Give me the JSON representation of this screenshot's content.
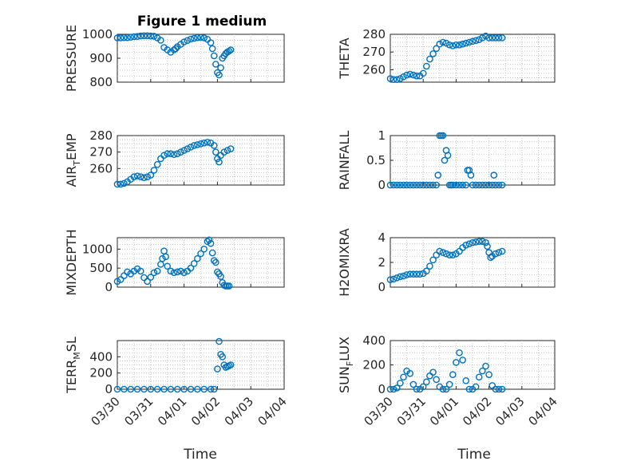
{
  "figure_title": "Figure 1 medium",
  "x_axis": {
    "label": "Time",
    "tick_labels": [
      "03/30",
      "03/31",
      "04/01",
      "04/02",
      "04/03",
      "04/04"
    ],
    "range_days": [
      0,
      5
    ]
  },
  "marker_color": "#0072BD",
  "grid": "on (dotted major and minor)",
  "chart_data": [
    {
      "type": "scatter",
      "ylabel": {
        "main": "PRESSURE",
        "sub": ""
      },
      "ylim": [
        800,
        1000
      ],
      "yticks": [
        800,
        900,
        1000
      ],
      "x_days": [
        0.0,
        0.1,
        0.2,
        0.3,
        0.4,
        0.5,
        0.6,
        0.7,
        0.8,
        0.9,
        1.0,
        1.1,
        1.2,
        1.3,
        1.4,
        1.5,
        1.6,
        1.7,
        1.75,
        1.8,
        1.9,
        2.0,
        2.1,
        2.2,
        2.3,
        2.4,
        2.5,
        2.6,
        2.7,
        2.8,
        2.85,
        2.9,
        2.95,
        3.0,
        3.05,
        3.1,
        3.15,
        3.2,
        3.25,
        3.3,
        3.35,
        3.4
      ],
      "values": [
        985,
        985,
        986,
        986,
        988,
        990,
        991,
        993,
        994,
        994,
        993,
        992,
        985,
        975,
        945,
        935,
        925,
        935,
        940,
        948,
        958,
        968,
        974,
        980,
        983,
        986,
        987,
        985,
        979,
        965,
        940,
        910,
        875,
        840,
        830,
        860,
        900,
        910,
        920,
        926,
        930,
        935
      ]
    },
    {
      "type": "scatter",
      "ylabel": {
        "main": "THETA",
        "sub": ""
      },
      "ylim": [
        253,
        280
      ],
      "yticks": [
        260,
        270,
        280
      ],
      "x_days": [
        0.0,
        0.1,
        0.2,
        0.3,
        0.4,
        0.5,
        0.6,
        0.7,
        0.8,
        0.9,
        1.0,
        1.1,
        1.2,
        1.3,
        1.4,
        1.5,
        1.6,
        1.7,
        1.8,
        1.9,
        2.0,
        2.1,
        2.2,
        2.3,
        2.4,
        2.5,
        2.6,
        2.7,
        2.8,
        2.9,
        3.0,
        3.1,
        3.2,
        3.3,
        3.4
      ],
      "values": [
        255,
        254.5,
        254.5,
        255,
        256,
        257,
        257.5,
        257,
        256.5,
        256.5,
        258,
        262,
        266,
        269,
        272,
        274.5,
        275.5,
        275,
        274,
        273.5,
        274,
        274,
        274.5,
        275,
        275.5,
        276,
        276.5,
        277,
        278,
        279,
        278,
        278,
        278,
        278,
        278
      ]
    },
    {
      "type": "scatter",
      "ylabel": {
        "main": "AIR",
        "sub": "T",
        "rest": "EMP"
      },
      "ylim": [
        250,
        280
      ],
      "yticks": [
        260,
        270,
        280
      ],
      "x_days": [
        0.0,
        0.1,
        0.2,
        0.3,
        0.4,
        0.5,
        0.6,
        0.7,
        0.8,
        0.9,
        1.0,
        1.1,
        1.2,
        1.3,
        1.4,
        1.5,
        1.6,
        1.7,
        1.8,
        1.9,
        2.0,
        2.1,
        2.2,
        2.3,
        2.4,
        2.5,
        2.6,
        2.7,
        2.8,
        2.9,
        2.95,
        3.0,
        3.05,
        3.1,
        3.2,
        3.3,
        3.4
      ],
      "values": [
        250.5,
        250.5,
        251,
        252,
        253.5,
        255,
        255.5,
        255,
        254.5,
        255,
        256,
        259,
        262.5,
        266,
        268,
        269,
        269,
        268.5,
        269,
        270,
        271,
        272,
        273,
        274,
        274.5,
        275,
        275.5,
        276,
        275.5,
        274,
        270,
        266,
        264,
        268,
        270,
        271,
        272
      ]
    },
    {
      "type": "scatter",
      "ylabel": {
        "main": "RAINFALL",
        "sub": ""
      },
      "ylim": [
        0,
        1
      ],
      "yticks": [
        0,
        0.5,
        1
      ],
      "x_days": [
        0.0,
        0.1,
        0.2,
        0.3,
        0.4,
        0.5,
        0.6,
        0.7,
        0.8,
        0.9,
        1.0,
        1.1,
        1.2,
        1.3,
        1.4,
        1.45,
        1.5,
        1.55,
        1.6,
        1.65,
        1.7,
        1.75,
        1.8,
        1.85,
        1.9,
        2.0,
        2.1,
        2.2,
        2.3,
        2.35,
        2.4,
        2.45,
        2.5,
        2.6,
        2.7,
        2.8,
        2.9,
        3.0,
        3.1,
        3.15,
        3.2,
        3.3,
        3.4
      ],
      "values": [
        0,
        0,
        0,
        0,
        0,
        0,
        0,
        0,
        0,
        0,
        0,
        0,
        0,
        0,
        0,
        0.2,
        1,
        1,
        1,
        0.5,
        0.7,
        0.6,
        0,
        0,
        0,
        0,
        0,
        0,
        0,
        0.3,
        0.3,
        0.2,
        0,
        0,
        0,
        0,
        0,
        0,
        0,
        0.2,
        0,
        0,
        0
      ]
    },
    {
      "type": "scatter",
      "ylabel": {
        "main": "MIXDEPTH",
        "sub": ""
      },
      "ylim": [
        0,
        1300
      ],
      "yticks": [
        0,
        500,
        1000
      ],
      "x_days": [
        0.0,
        0.1,
        0.2,
        0.3,
        0.4,
        0.5,
        0.6,
        0.7,
        0.8,
        0.9,
        1.0,
        1.1,
        1.2,
        1.3,
        1.35,
        1.4,
        1.45,
        1.5,
        1.6,
        1.7,
        1.8,
        1.9,
        2.0,
        2.1,
        2.2,
        2.3,
        2.4,
        2.5,
        2.6,
        2.7,
        2.75,
        2.8,
        2.85,
        2.9,
        2.95,
        3.0,
        3.05,
        3.1,
        3.15,
        3.2,
        3.25,
        3.3,
        3.35
      ],
      "values": [
        150,
        200,
        300,
        400,
        350,
        420,
        480,
        420,
        250,
        150,
        260,
        380,
        420,
        600,
        750,
        950,
        800,
        550,
        420,
        380,
        400,
        420,
        380,
        420,
        500,
        620,
        750,
        880,
        1000,
        1200,
        1240,
        1150,
        900,
        700,
        650,
        400,
        350,
        280,
        120,
        50,
        30,
        30,
        30
      ]
    },
    {
      "type": "scatter",
      "ylabel": {
        "main": "H2OMIXRA",
        "sub": ""
      },
      "ylim": [
        0,
        4
      ],
      "yticks": [
        0,
        2,
        4
      ],
      "x_days": [
        0.0,
        0.1,
        0.2,
        0.3,
        0.4,
        0.5,
        0.6,
        0.7,
        0.8,
        0.9,
        1.0,
        1.1,
        1.2,
        1.3,
        1.4,
        1.5,
        1.6,
        1.7,
        1.8,
        1.9,
        2.0,
        2.1,
        2.2,
        2.3,
        2.4,
        2.5,
        2.6,
        2.7,
        2.8,
        2.9,
        2.95,
        3.0,
        3.05,
        3.1,
        3.2,
        3.3,
        3.4
      ],
      "values": [
        0.6,
        0.65,
        0.75,
        0.85,
        0.9,
        1.0,
        1.05,
        1.05,
        1.05,
        1.05,
        1.1,
        1.3,
        1.7,
        2.2,
        2.6,
        2.9,
        2.8,
        2.7,
        2.6,
        2.6,
        2.7,
        2.9,
        3.2,
        3.4,
        3.5,
        3.6,
        3.65,
        3.7,
        3.7,
        3.6,
        3.3,
        2.8,
        2.4,
        2.5,
        2.7,
        2.8,
        2.9
      ]
    },
    {
      "type": "scatter",
      "ylabel": {
        "main": "TERR",
        "sub": "M",
        "rest": "SL"
      },
      "ylim": [
        0,
        600
      ],
      "yticks": [
        0,
        200,
        400
      ],
      "x_days": [
        0.0,
        0.2,
        0.4,
        0.6,
        0.8,
        1.0,
        1.2,
        1.4,
        1.6,
        1.8,
        2.0,
        2.2,
        2.4,
        2.6,
        2.8,
        2.9,
        3.0,
        3.05,
        3.1,
        3.15,
        3.2,
        3.25,
        3.3,
        3.35,
        3.4
      ],
      "values": [
        0,
        0,
        0,
        0,
        0,
        0,
        0,
        0,
        0,
        0,
        0,
        0,
        0,
        0,
        0,
        0,
        250,
        590,
        430,
        400,
        300,
        270,
        280,
        290,
        300
      ]
    },
    {
      "type": "scatter",
      "ylabel": {
        "main": "SUN",
        "sub": "F",
        "rest": "LUX"
      },
      "ylim": [
        0,
        400
      ],
      "yticks": [
        0,
        200,
        400
      ],
      "x_days": [
        0.0,
        0.1,
        0.2,
        0.3,
        0.4,
        0.5,
        0.6,
        0.7,
        0.8,
        0.9,
        1.0,
        1.1,
        1.2,
        1.3,
        1.4,
        1.5,
        1.6,
        1.7,
        1.8,
        1.9,
        2.0,
        2.1,
        2.2,
        2.3,
        2.4,
        2.5,
        2.6,
        2.7,
        2.8,
        2.9,
        3.0,
        3.1,
        3.2,
        3.3,
        3.4
      ],
      "values": [
        0,
        0,
        10,
        50,
        100,
        150,
        130,
        40,
        0,
        0,
        20,
        60,
        110,
        140,
        80,
        20,
        0,
        0,
        40,
        120,
        220,
        300,
        240,
        70,
        0,
        0,
        20,
        100,
        150,
        190,
        120,
        30,
        0,
        0,
        0
      ]
    }
  ]
}
